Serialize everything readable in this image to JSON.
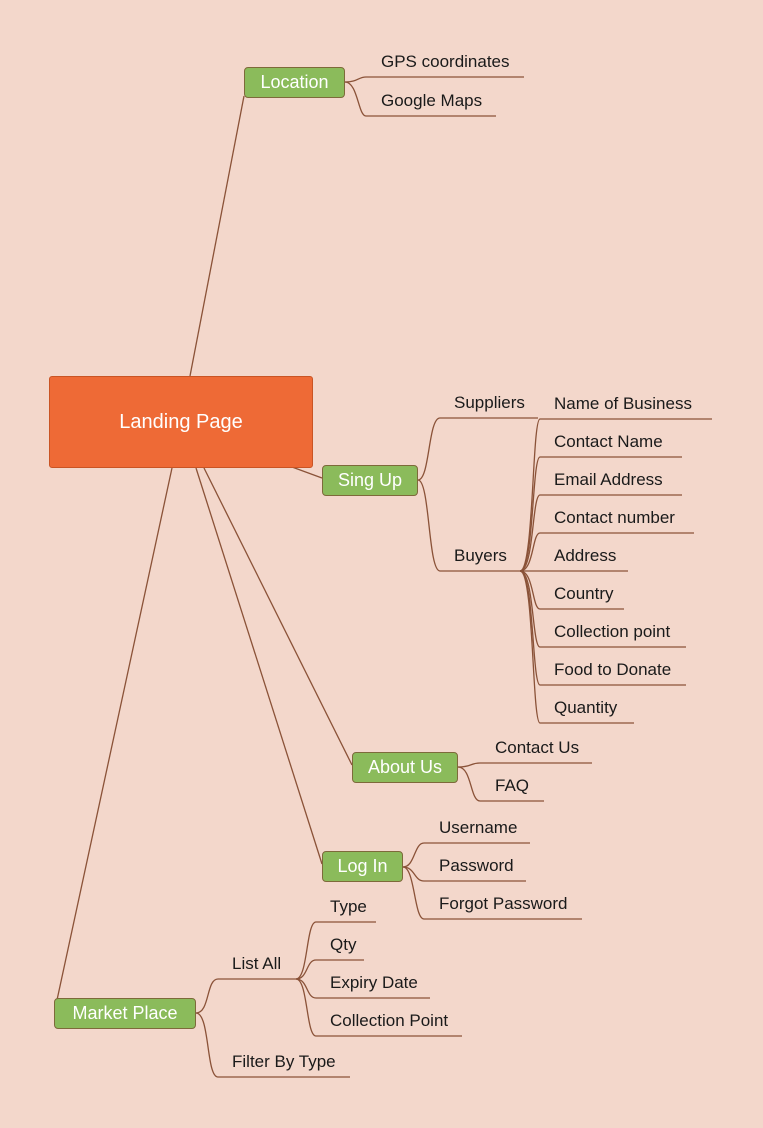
{
  "root": {
    "label": "Landing Page"
  },
  "branches": {
    "location": {
      "label": "Location",
      "items": [
        "GPS coordinates",
        "Google Maps"
      ]
    },
    "signup": {
      "label": "Sing Up",
      "suppliers": "Suppliers",
      "buyers": "Buyers",
      "fields": [
        "Name of Business",
        "Contact Name",
        "Email Address",
        "Contact number",
        "Address",
        "Country",
        "Collection point",
        "Food to Donate",
        "Quantity"
      ]
    },
    "about": {
      "label": "About Us",
      "items": [
        "Contact Us",
        "FAQ"
      ]
    },
    "login": {
      "label": "Log In",
      "items": [
        "Username",
        "Password",
        "Forgot Password"
      ]
    },
    "market": {
      "label": "Market Place",
      "list_all": "List All",
      "list_items": [
        "Type",
        "Qty",
        "Expiry Date",
        "Collection Point"
      ],
      "filter": "Filter By Type"
    }
  },
  "colors": {
    "background": "#f3d7cb",
    "root": "#ee6a36",
    "branch": "#8bbb5b",
    "line": "#8a5238"
  }
}
